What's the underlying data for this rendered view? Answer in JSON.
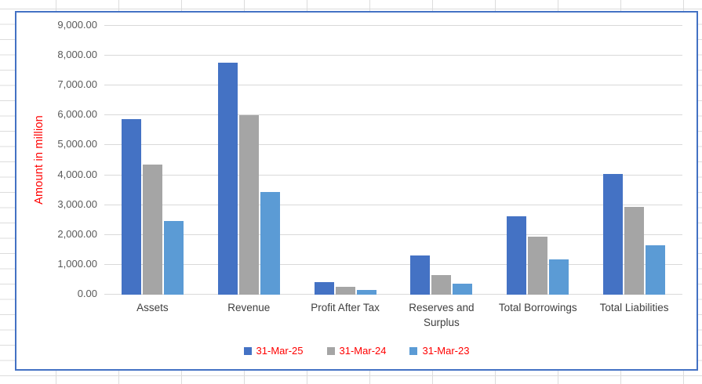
{
  "chart_data": {
    "type": "bar",
    "title": "",
    "categories": [
      "Assets",
      "Revenue",
      "Profit After Tax",
      "Reserves and Surplus",
      "Total Borrowings",
      "Total Liabilities"
    ],
    "series": [
      {
        "name": "31-Mar-25",
        "color": "#4472C4",
        "values": [
          5880,
          7770,
          410,
          1300,
          2630,
          4040
        ]
      },
      {
        "name": "31-Mar-24",
        "color": "#A5A5A5",
        "values": [
          4360,
          6000,
          250,
          650,
          1950,
          2930
        ]
      },
      {
        "name": "31-Mar-23",
        "color": "#5B9BD5",
        "values": [
          2470,
          3430,
          160,
          370,
          1190,
          1660
        ]
      }
    ],
    "xlabel": "",
    "ylabel": "Amount in million",
    "ylim": [
      0,
      9000
    ],
    "ytick_step": 1000,
    "ytick_labels": [
      "0.00",
      "1,000.00",
      "2,000.00",
      "3,000.00",
      "4,000.00",
      "5,000.00",
      "6,000.00",
      "7,000.00",
      "8,000.00",
      "9,000.00"
    ],
    "grid": true,
    "legend_position": "bottom"
  },
  "styles": {
    "series_colors": [
      "#4472C4",
      "#A5A5A5",
      "#5B9BD5"
    ],
    "axis_title_color": "#FF0000",
    "legend_text_color": "#FF0000",
    "tick_label_color": "#595959",
    "category_label_color": "#3F3F3F",
    "gridline_color": "#D9D9D9",
    "chart_border_color": "#4472C4",
    "excel_grid_color": "#DCDCDC"
  }
}
